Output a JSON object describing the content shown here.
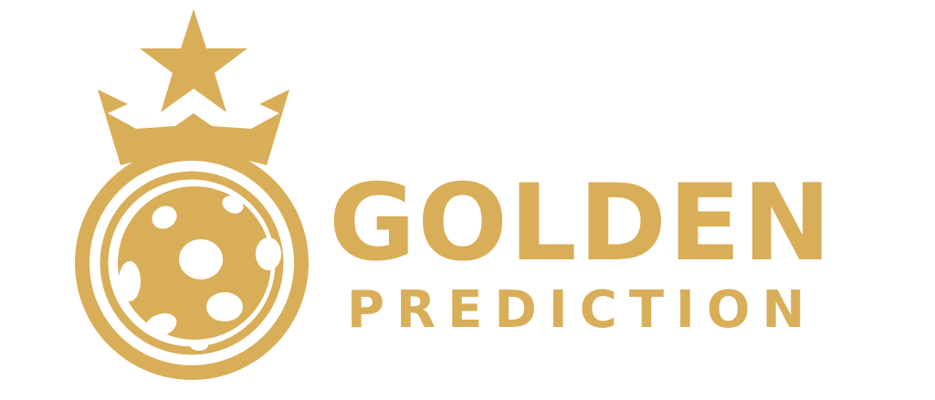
{
  "brand": {
    "line1": "GOLDEN",
    "line2": "PREDICTION"
  },
  "colors": {
    "gold": "#d9ae58",
    "background": "#ffffff"
  },
  "icons": {
    "star": "star-icon",
    "crown": "crown-icon",
    "ball": "soccer-ball-icon"
  }
}
